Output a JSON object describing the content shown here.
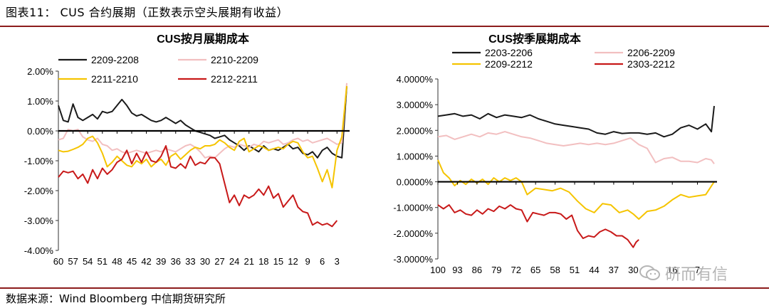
{
  "figure": {
    "title": "图表11： CUS 合约展期（正数表示空头展期有收益）",
    "source": "数据来源：Wind  Bloomberg  中信期货研究所",
    "watermark": "研而有信"
  },
  "chart_data": [
    {
      "type": "line",
      "title": "CUS按月展期成本",
      "xlabel": "",
      "ylabel": "",
      "ylim": [
        -0.04,
        0.02
      ],
      "y_ticks": [
        0.02,
        0.01,
        0.0,
        -0.01,
        -0.02,
        -0.03,
        -0.04
      ],
      "y_tick_labels": [
        "2.00%",
        "1.00%",
        "0.00%",
        "-1.00%",
        "-2.00%",
        "-3.00%",
        "-4.00%"
      ],
      "x": [
        60,
        59,
        58,
        57,
        56,
        55,
        54,
        53,
        52,
        51,
        50,
        49,
        48,
        47,
        46,
        45,
        44,
        43,
        42,
        41,
        40,
        39,
        38,
        37,
        36,
        35,
        34,
        33,
        32,
        31,
        30,
        29,
        28,
        27,
        26,
        25,
        24,
        23,
        22,
        21,
        20,
        19,
        18,
        17,
        16,
        15,
        14,
        13,
        12,
        11,
        10,
        9,
        8,
        7,
        6,
        5,
        4,
        3,
        2,
        1
      ],
      "x_tick_labels": [
        "60",
        "57",
        "54",
        "51",
        "48",
        "45",
        "42",
        "39",
        "36",
        "33",
        "30",
        "27",
        "24",
        "21",
        "18",
        "15",
        "12",
        "9",
        "6",
        "3"
      ],
      "legend_position": "top",
      "series": [
        {
          "name": "2209-2208",
          "color": "#1a1a1a",
          "values": [
            0.0085,
            0.0035,
            0.003,
            0.009,
            0.0045,
            0.0035,
            0.0045,
            0.0055,
            0.004,
            0.0065,
            0.006,
            0.0065,
            0.0085,
            0.0105,
            0.0085,
            0.006,
            0.005,
            0.0055,
            0.0045,
            0.0035,
            0.003,
            0.0035,
            0.0045,
            0.0035,
            0.0025,
            0.0035,
            0.002,
            0.001,
            0.0,
            -0.0005,
            -0.001,
            -0.0015,
            -0.0025,
            -0.002,
            -0.0015,
            -0.003,
            -0.004,
            -0.005,
            -0.0065,
            -0.005,
            -0.006,
            -0.007,
            -0.005,
            -0.0065,
            -0.006,
            -0.0065,
            -0.0055,
            -0.0045,
            -0.006,
            -0.0055,
            -0.0075,
            -0.008,
            -0.007,
            -0.009,
            -0.0065,
            -0.0055,
            -0.0075,
            -0.0085,
            -0.009,
            0.015
          ]
        },
        {
          "name": "2210-2209",
          "color": "#f2bfc0",
          "values": [
            -0.003,
            -0.0025,
            0.0005,
            0.0,
            0.0005,
            -0.002,
            -0.003,
            -0.0035,
            -0.0025,
            -0.0045,
            -0.005,
            -0.0065,
            -0.006,
            -0.007,
            -0.0075,
            -0.007,
            -0.0065,
            -0.007,
            -0.0075,
            -0.007,
            -0.0065,
            -0.007,
            -0.006,
            -0.0065,
            -0.007,
            -0.006,
            -0.005,
            -0.0045,
            -0.0055,
            -0.007,
            -0.009,
            -0.0085,
            -0.009,
            -0.0075,
            -0.006,
            -0.005,
            -0.0055,
            -0.0045,
            -0.005,
            -0.0055,
            -0.0045,
            -0.005,
            -0.0035,
            -0.004,
            -0.0035,
            -0.003,
            -0.0045,
            -0.004,
            -0.003,
            -0.0025,
            -0.0035,
            -0.003,
            -0.004,
            -0.0035,
            -0.003,
            -0.0025,
            -0.0035,
            -0.0045,
            -0.004,
            0.016
          ]
        },
        {
          "name": "2211-2210",
          "color": "#f5c400",
          "values": [
            -0.0065,
            -0.007,
            -0.0068,
            -0.0062,
            -0.0055,
            -0.0045,
            -0.0025,
            -0.0018,
            -0.004,
            -0.0075,
            -0.012,
            -0.0105,
            -0.0085,
            -0.01,
            -0.0115,
            -0.012,
            -0.01,
            -0.011,
            -0.0095,
            -0.012,
            -0.0105,
            -0.0095,
            -0.0115,
            -0.0085,
            -0.0075,
            -0.0095,
            -0.008,
            -0.0065,
            -0.0055,
            -0.006,
            -0.005,
            -0.005,
            -0.0045,
            -0.003,
            -0.004,
            -0.0055,
            -0.0065,
            -0.0035,
            -0.0025,
            -0.007,
            -0.006,
            -0.005,
            -0.0055,
            -0.0065,
            -0.006,
            -0.0055,
            -0.006,
            -0.0045,
            -0.0035,
            -0.004,
            -0.007,
            -0.009,
            -0.0085,
            -0.0125,
            -0.017,
            -0.013,
            -0.019,
            -0.0065,
            -0.002,
            0.015
          ]
        },
        {
          "name": "2212-2211",
          "color": "#c81919",
          "values": [
            -0.0155,
            -0.0135,
            -0.014,
            -0.0135,
            -0.016,
            -0.0145,
            -0.0175,
            -0.013,
            -0.016,
            -0.0125,
            -0.0145,
            -0.013,
            -0.0105,
            -0.0095,
            -0.0065,
            -0.011,
            -0.0075,
            -0.0105,
            -0.007,
            -0.01,
            -0.0105,
            -0.0085,
            -0.005,
            -0.012,
            -0.0125,
            -0.011,
            -0.0125,
            -0.0085,
            -0.0115,
            -0.0105,
            -0.011,
            -0.009,
            -0.009,
            -0.011,
            -0.0175,
            -0.024,
            -0.0215,
            -0.025,
            -0.0215,
            -0.0225,
            -0.0215,
            -0.0195,
            -0.0215,
            -0.0185,
            -0.0225,
            -0.021,
            -0.0255,
            -0.0235,
            -0.0215,
            -0.0255,
            -0.027,
            -0.0275,
            -0.0315,
            -0.0305,
            -0.0315,
            -0.031,
            -0.032,
            -0.03,
            null,
            null
          ]
        }
      ]
    },
    {
      "type": "line",
      "title": "CUS按季展期成本",
      "xlabel": "",
      "ylabel": "",
      "ylim": [
        -0.03,
        0.04
      ],
      "y_ticks": [
        0.04,
        0.03,
        0.02,
        0.01,
        0.0,
        -0.01,
        -0.02,
        -0.03
      ],
      "y_tick_labels": [
        "4.0000%",
        "3.0000%",
        "2.0000%",
        "1.0000%",
        "0.0000%",
        "-1.0000%",
        "-2.0000%",
        "-3.0000%"
      ],
      "x_range": [
        100,
        1
      ],
      "x_tick_labels": [
        "100",
        "93",
        "86",
        "79",
        "72",
        "65",
        "58",
        "51",
        "44",
        "37",
        "30",
        "16",
        "7"
      ],
      "legend_position": "top",
      "series": [
        {
          "name": "2203-2206",
          "color": "#1a1a1a",
          "x": [
            100,
            97,
            94,
            91,
            88,
            85,
            82,
            79,
            76,
            73,
            70,
            67,
            64,
            61,
            58,
            55,
            52,
            49,
            46,
            43,
            40,
            37,
            34,
            31,
            28,
            25,
            22,
            19,
            16,
            13,
            10,
            7,
            4,
            2,
            1
          ],
          "values": [
            0.0255,
            0.026,
            0.0265,
            0.0255,
            0.026,
            0.0245,
            0.0265,
            0.025,
            0.026,
            0.0255,
            0.025,
            0.026,
            0.0245,
            0.0235,
            0.0225,
            0.022,
            0.0215,
            0.021,
            0.0205,
            0.019,
            0.0185,
            0.0195,
            0.0188,
            0.019,
            0.019,
            0.0185,
            0.019,
            0.0175,
            0.0185,
            0.021,
            0.022,
            0.0205,
            0.0225,
            0.0195,
            0.0295
          ]
        },
        {
          "name": "2206-2209",
          "color": "#f2bfc0",
          "x": [
            100,
            97,
            94,
            91,
            88,
            85,
            82,
            79,
            76,
            73,
            70,
            67,
            64,
            61,
            58,
            55,
            52,
            49,
            46,
            43,
            40,
            37,
            34,
            31,
            28,
            25,
            22,
            19,
            16,
            13,
            10,
            7,
            4,
            2,
            1
          ],
          "values": [
            0.0175,
            0.018,
            0.0165,
            0.0175,
            0.0185,
            0.0175,
            0.019,
            0.0185,
            0.0195,
            0.0185,
            0.0175,
            0.017,
            0.016,
            0.015,
            0.0145,
            0.014,
            0.0145,
            0.015,
            0.0145,
            0.015,
            0.0145,
            0.015,
            0.016,
            0.017,
            0.0145,
            0.013,
            0.0075,
            0.009,
            0.0095,
            0.008,
            0.008,
            0.0075,
            0.009,
            0.0085,
            0.007
          ]
        },
        {
          "name": "2209-2212",
          "color": "#f5c400",
          "x": [
            100,
            98,
            96,
            94,
            92,
            90,
            88,
            86,
            84,
            82,
            80,
            78,
            76,
            74,
            72,
            70,
            68,
            65,
            62,
            59,
            56,
            53,
            50,
            47,
            44,
            41,
            38,
            35,
            32,
            30,
            28,
            25,
            22,
            19,
            16,
            13,
            10,
            7,
            4,
            1
          ],
          "values": [
            0.0085,
            0.0035,
            0.0015,
            -0.0015,
            0.0005,
            -0.001,
            0.001,
            -0.0005,
            0.001,
            -0.001,
            0.0015,
            0.0,
            0.0015,
            0.0005,
            0.0015,
            0.0,
            -0.005,
            -0.0025,
            -0.003,
            -0.0035,
            -0.0025,
            -0.004,
            -0.0075,
            -0.0105,
            -0.012,
            -0.0085,
            -0.009,
            -0.012,
            -0.011,
            -0.0125,
            -0.0145,
            -0.0115,
            -0.011,
            -0.0095,
            -0.007,
            -0.005,
            -0.006,
            -0.0055,
            -0.005,
            0.0
          ]
        },
        {
          "name": "2303-2212",
          "color": "#c81919",
          "x": [
            100,
            98,
            96,
            94,
            92,
            90,
            88,
            86,
            84,
            82,
            80,
            78,
            76,
            74,
            72,
            70,
            68,
            66,
            64,
            62,
            60,
            58,
            56,
            54,
            52,
            50,
            48,
            46,
            44,
            42,
            40,
            38,
            36,
            34,
            32,
            30,
            29,
            28
          ],
          "values": [
            -0.009,
            -0.0105,
            -0.009,
            -0.012,
            -0.011,
            -0.0125,
            -0.013,
            -0.011,
            -0.0125,
            -0.0105,
            -0.0115,
            -0.0095,
            -0.0105,
            -0.009,
            -0.0105,
            -0.011,
            -0.0155,
            -0.012,
            -0.0125,
            -0.013,
            -0.012,
            -0.012,
            -0.0125,
            -0.0145,
            -0.013,
            -0.019,
            -0.022,
            -0.021,
            -0.0215,
            -0.0195,
            -0.0185,
            -0.0195,
            -0.021,
            -0.021,
            -0.0225,
            -0.0255,
            -0.0235,
            -0.0225
          ]
        }
      ]
    }
  ]
}
